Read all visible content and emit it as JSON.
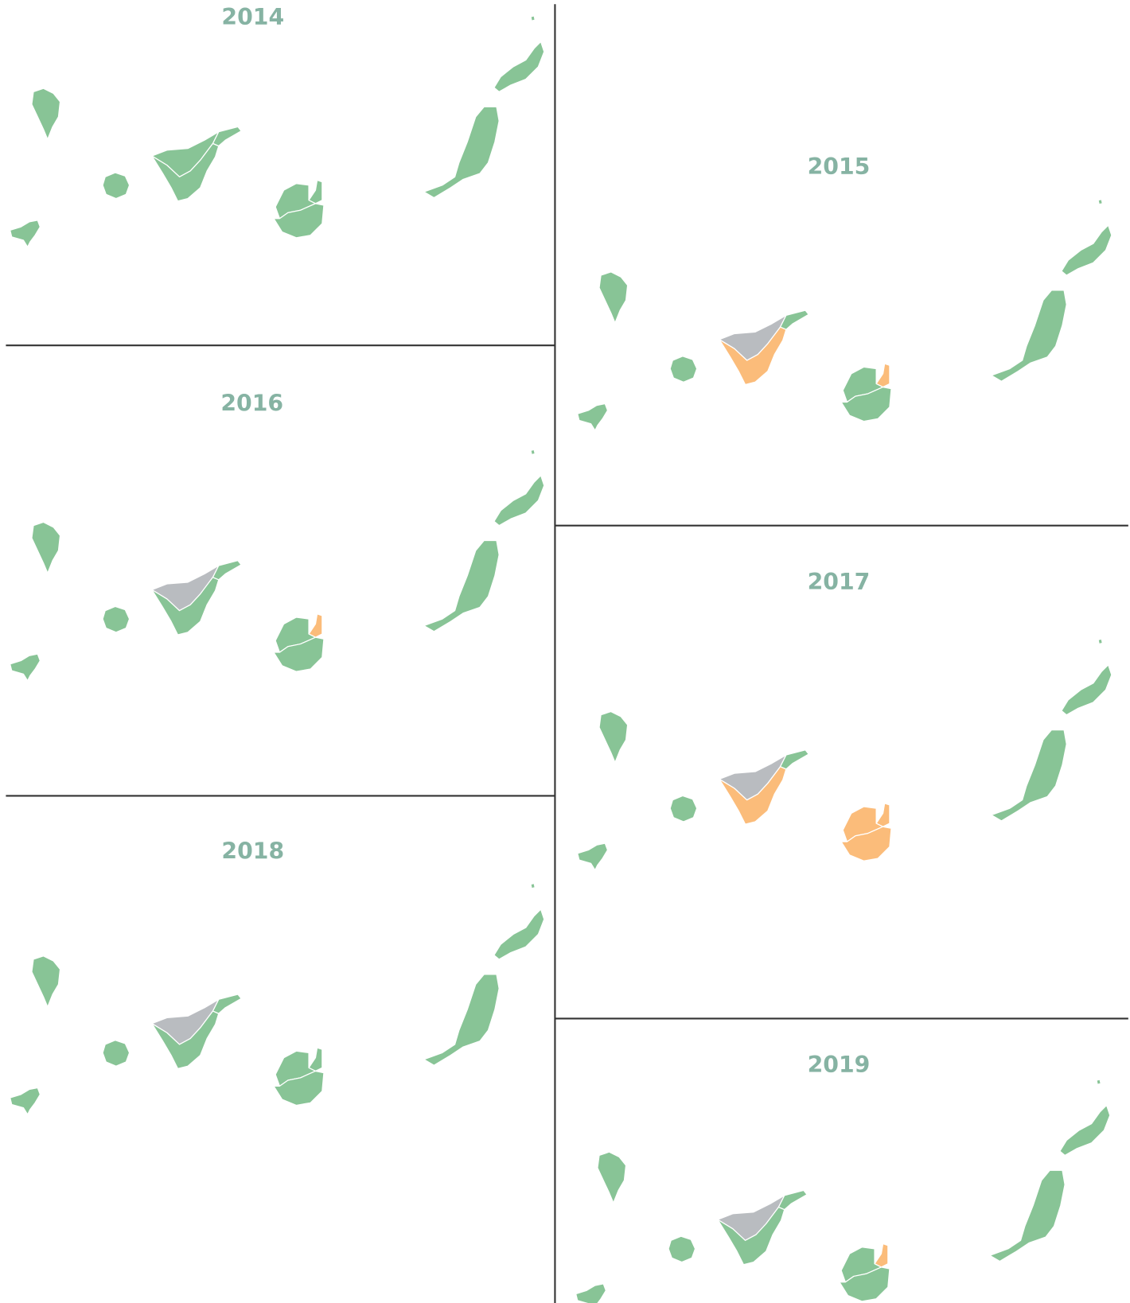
{
  "panels": [
    {
      "title": "2014",
      "fills": [
        "#88c496",
        "#88c496",
        "#88c496",
        "#88c496",
        "#88c496",
        "#88c496",
        "#88c496",
        "#88c496",
        "#88c496",
        "#88c496",
        "#88c496",
        "#88c496"
      ]
    },
    {
      "title": "2015",
      "fills": [
        "#88c496",
        "#88c496",
        "#88c496",
        "#b9bcc0",
        "#fbbc7a",
        "#88c496",
        "#fbbc7a",
        "#88c496",
        "#88c496",
        "#88c496",
        "#88c496",
        "#88c496"
      ]
    },
    {
      "title": "2016",
      "fills": [
        "#88c496",
        "#88c496",
        "#88c496",
        "#b9bcc0",
        "#88c496",
        "#88c496",
        "#fbbc7a",
        "#88c496",
        "#88c496",
        "#88c496",
        "#88c496",
        "#88c496"
      ]
    },
    {
      "title": "2017",
      "fills": [
        "#88c496",
        "#88c496",
        "#88c496",
        "#b9bcc0",
        "#fbbc7a",
        "#88c496",
        "#fbbc7a",
        "#fbbc7a",
        "#fbbc7a",
        "#88c496",
        "#88c496",
        "#88c496"
      ]
    },
    {
      "title": "2018",
      "fills": [
        "#88c496",
        "#88c496",
        "#88c496",
        "#b9bcc0",
        "#88c496",
        "#88c496",
        "#88c496",
        "#88c496",
        "#88c496",
        "#88c496",
        "#88c496",
        "#88c496"
      ]
    },
    {
      "title": "2019",
      "fills": [
        "#88c496",
        "#88c496",
        "#88c496",
        "#b9bcc0",
        "#88c496",
        "#88c496",
        "#fbbc7a",
        "#88c496",
        "#88c496",
        "#88c496",
        "#88c496",
        "#88c496"
      ]
    }
  ]
}
